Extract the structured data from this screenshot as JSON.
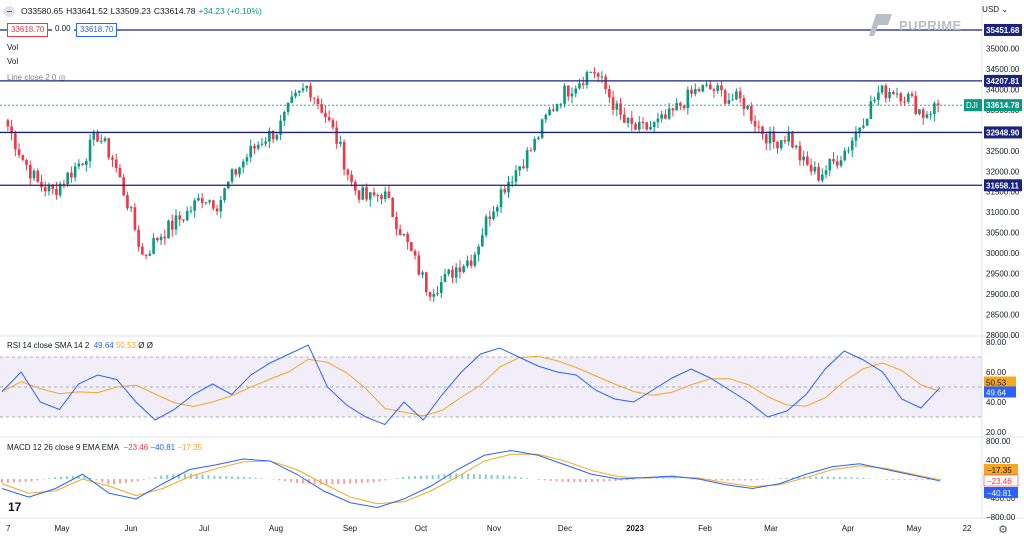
{
  "header": {
    "ohlc": {
      "open": "O33580.65",
      "high": "H33641.52",
      "low": "L33509.23",
      "close": "C33614.78",
      "change": "+34.23 (+0.10%)"
    },
    "sell_price": "33618.70",
    "spread": "0.00",
    "buy_price": "33618.70",
    "vol_label_1": "Vol",
    "vol_label_2": "Vol",
    "indicator_label": "Line close 2 0",
    "currency": "USD",
    "brand": "PUPRIME"
  },
  "price_axis": {
    "ticks": [
      "35000.00",
      "34500.00",
      "34000.00",
      "33500.00",
      "33000.00",
      "32500.00",
      "32000.00",
      "31500.00",
      "31000.00",
      "30500.00",
      "30000.00",
      "29500.00",
      "29000.00",
      "28500.00",
      "28000.00"
    ],
    "levels": [
      "35451.68",
      "34207.81",
      "32948.90",
      "31658.11"
    ],
    "symbol": "DJI",
    "last_price": "33614.78"
  },
  "rsi": {
    "title": "RSI 14 close SMA 14 2",
    "value": "49.64",
    "sma": "50.53",
    "flags": "Ø Ø",
    "ticks": [
      "80.00",
      "60.00",
      "40.00",
      "20.00"
    ],
    "label_rsi": "49.64",
    "label_sma": "50.53"
  },
  "macd": {
    "title": "MACD 12 26 close 9 EMA EMA",
    "hist": "−23.46",
    "macd": "−40.81",
    "signal": "−17.35",
    "ticks": [
      "800.00",
      "400.00",
      "0.00",
      "−400.00",
      "−800.00"
    ],
    "label_signal": "−17.35",
    "label_hist": "−23.46",
    "label_macd": "−40.81"
  },
  "time_axis": [
    "7",
    "May",
    "Jun",
    "Jul",
    "Aug",
    "Sep",
    "Oct",
    "Nov",
    "Dec",
    "2023",
    "Feb",
    "Mar",
    "Apr",
    "May",
    "22"
  ],
  "footer": {
    "tv_logo": "17"
  },
  "colors": {
    "up": "#089981",
    "down": "#f23645",
    "level": "#1a237e",
    "rsi": "#2962ff",
    "sma": "#f5a623",
    "rsi_band": "#7e57c2"
  },
  "chart_data": {
    "type": "candlestick",
    "symbol": "DJI",
    "close_path": [
      [
        "May",
        33100
      ],
      [
        "",
        32300
      ],
      [
        "",
        31700
      ],
      [
        "",
        31500
      ],
      [
        "",
        31900
      ],
      [
        "",
        32300
      ],
      [
        "Jun",
        32900
      ],
      [
        "",
        32300
      ],
      [
        "",
        31200
      ],
      [
        "",
        29900
      ],
      [
        "",
        30400
      ],
      [
        "",
        30700
      ],
      [
        "Jul",
        31000
      ],
      [
        "",
        31400
      ],
      [
        "",
        31200
      ],
      [
        "",
        31900
      ],
      [
        "",
        32400
      ],
      [
        "",
        32800
      ],
      [
        "Aug",
        33000
      ],
      [
        "",
        33700
      ],
      [
        "",
        34100
      ],
      [
        "",
        33500
      ],
      [
        "",
        32700
      ],
      [
        "Sep",
        31600
      ],
      [
        "",
        31300
      ],
      [
        "",
        31500
      ],
      [
        "",
        30700
      ],
      [
        "",
        29900
      ],
      [
        "",
        29100
      ],
      [
        "Oct",
        29300
      ],
      [
        "",
        29700
      ],
      [
        "",
        29900
      ],
      [
        "",
        30900
      ],
      [
        "",
        31600
      ],
      [
        "",
        32100
      ],
      [
        "Nov",
        32600
      ],
      [
        "",
        33400
      ],
      [
        "",
        33900
      ],
      [
        "",
        34200
      ],
      [
        "Dec",
        34500
      ],
      [
        "",
        33900
      ],
      [
        "",
        33200
      ],
      [
        "",
        33000
      ],
      [
        "",
        33100
      ],
      [
        "2023",
        33300
      ],
      [
        "",
        33700
      ],
      [
        "",
        34000
      ],
      [
        "Feb",
        34000
      ],
      [
        "",
        33800
      ],
      [
        "",
        33700
      ],
      [
        "",
        33100
      ],
      [
        "",
        32700
      ],
      [
        "Mar",
        32900
      ],
      [
        "",
        32200
      ],
      [
        "",
        31900
      ],
      [
        "",
        32200
      ],
      [
        "",
        32600
      ],
      [
        "Apr",
        33300
      ],
      [
        "",
        33900
      ],
      [
        "",
        34000
      ],
      [
        "",
        33800
      ],
      [
        "May",
        33400
      ],
      [
        "",
        33614.78
      ]
    ],
    "horizontal_levels": [
      35451.68,
      34207.81,
      32948.9,
      31658.11
    ],
    "rsi_values": [
      47,
      60,
      40,
      35,
      52,
      58,
      55,
      40,
      28,
      35,
      45,
      52,
      45,
      58,
      66,
      72,
      78,
      50,
      38,
      30,
      25,
      40,
      28,
      45,
      60,
      72,
      76,
      70,
      64,
      60,
      58,
      48,
      42,
      40,
      48,
      56,
      62,
      56,
      48,
      40,
      30,
      34,
      45,
      62,
      74,
      68,
      60,
      42,
      36,
      49.64
    ],
    "macd_values": [
      -200,
      -380,
      -200,
      100,
      -300,
      -420,
      -100,
      200,
      300,
      420,
      380,
      100,
      -250,
      -500,
      -600,
      -420,
      -150,
      200,
      500,
      600,
      500,
      300,
      100,
      0,
      30,
      60,
      0,
      -120,
      -200,
      -100,
      100,
      260,
      320,
      200,
      80,
      -40.81
    ],
    "signal_values": [
      -100,
      -300,
      -250,
      0,
      -150,
      -350,
      -200,
      50,
      220,
      360,
      380,
      200,
      -100,
      -380,
      -520,
      -480,
      -250,
      50,
      380,
      520,
      520,
      380,
      180,
      50,
      20,
      40,
      20,
      -80,
      -160,
      -120,
      30,
      200,
      280,
      220,
      100,
      -17.35
    ],
    "ylim_price": [
      28000,
      35500
    ],
    "ylim_rsi": [
      20,
      80
    ],
    "ylim_macd": [
      -800,
      800
    ]
  }
}
